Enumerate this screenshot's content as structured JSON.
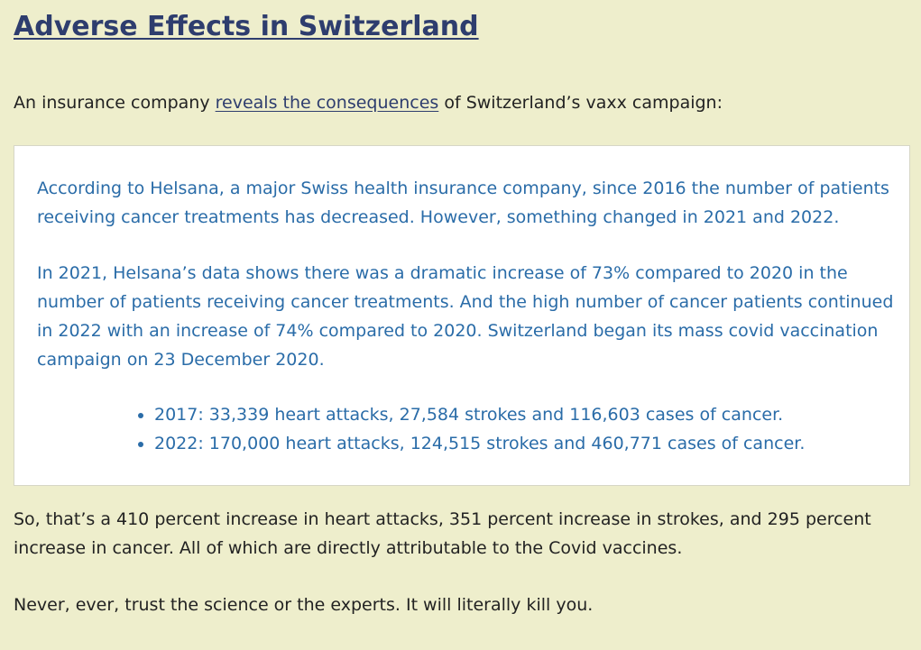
{
  "article": {
    "title": "Adverse Effects in Switzerland",
    "intro": {
      "before_link": "An insurance company ",
      "link_text": "reveals the consequences",
      "after_link": " of Switzerland’s vaxx campaign:"
    },
    "quote": {
      "paragraph1": "According to Helsana, a major Swiss health insurance company, since 2016 the number of patients receiving cancer treatments has decreased. However, something changed in 2021 and 2022.",
      "paragraph2": "In 2021, Helsana’s data shows there was a dramatic increase of 73% compared to 2020 in the number of patients receiving cancer treatments. And the high number of cancer patients continued in 2022 with an increase of 74% compared to 2020. Switzerland began its mass covid vaccination campaign on 23 December 2020.",
      "bullets": [
        "2017: 33,339 heart attacks, 27,584 strokes and 116,603 cases of cancer.",
        "2022: 170,000 heart attacks, 124,515 strokes and 460,771 cases of cancer."
      ]
    },
    "paragraph_after1": "So, that’s a 410 percent increase in heart attacks, 351 percent increase in strokes, and 295 percent increase in cancer. All of which are directly attributable to the Covid vaccines.",
    "paragraph_after2": "Never, ever, trust the science or the experts. It will literally kill you."
  },
  "colors": {
    "page_background": "#eeeecc",
    "title_link": "#2e3d6e",
    "quote_text": "#2a6ca8",
    "body_text": "#222222",
    "quote_background": "#ffffff"
  }
}
